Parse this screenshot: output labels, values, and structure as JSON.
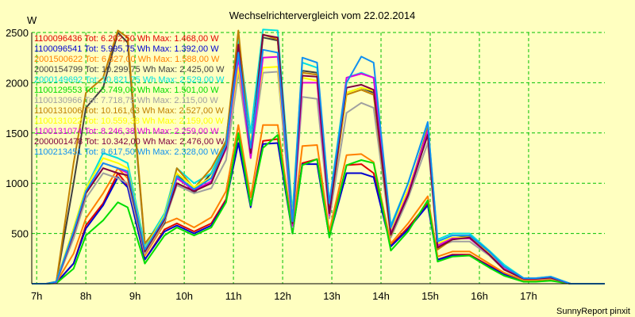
{
  "chart_data": {
    "type": "line",
    "title": "Wechselrichtervergleich vom 22.02.2014",
    "ylabel": "W",
    "footer": "SunnyReport pinxit",
    "ylim": [
      0,
      2500
    ],
    "xlim": [
      6.9,
      18.55
    ],
    "grid": true,
    "legend_position": "top-left",
    "xticks": [
      {
        "v": 7,
        "label": "7h"
      },
      {
        "v": 8,
        "label": "8h"
      },
      {
        "v": 9,
        "label": "9h"
      },
      {
        "v": 10,
        "label": "10h"
      },
      {
        "v": 11,
        "label": "11h"
      },
      {
        "v": 12,
        "label": "12h"
      },
      {
        "v": 13,
        "label": "13h"
      },
      {
        "v": 14,
        "label": "14h"
      },
      {
        "v": 15,
        "label": "15h"
      },
      {
        "v": 16,
        "label": "16h"
      },
      {
        "v": 17,
        "label": "17h"
      }
    ],
    "yticks": [
      {
        "v": 500,
        "label": "500"
      },
      {
        "v": 1000,
        "label": "1000"
      },
      {
        "v": 1500,
        "label": "1500"
      },
      {
        "v": 2000,
        "label": "2000"
      },
      {
        "v": 2500,
        "label": "2500"
      }
    ],
    "x": [
      6.9,
      7.2,
      7.4,
      7.75,
      8.0,
      8.35,
      8.65,
      8.85,
      9.2,
      9.6,
      9.85,
      10.2,
      10.55,
      10.85,
      11.1,
      11.35,
      11.6,
      11.9,
      12.2,
      12.4,
      12.7,
      12.95,
      13.3,
      13.6,
      13.85,
      14.2,
      14.55,
      14.95,
      15.15,
      15.45,
      15.8,
      16.2,
      16.5,
      16.9,
      17.15,
      17.45,
      17.85,
      18.55
    ],
    "series": [
      {
        "name": "1100096436 Tot: 6.202,50 Wh Max: 1.468,00 W",
        "color": "#e00000",
        "values": [
          0,
          0,
          10,
          200,
          580,
          800,
          1100,
          980,
          240,
          540,
          600,
          520,
          600,
          840,
          1480,
          780,
          1420,
          1440,
          520,
          1200,
          1240,
          480,
          1180,
          1190,
          1100,
          380,
          560,
          800,
          240,
          290,
          290,
          180,
          100,
          30,
          30,
          40,
          0,
          0
        ]
      },
      {
        "name": "1100096541 Tot: 5.995,75 Wh Max: 1.392,00 W",
        "color": "#0000d0",
        "values": [
          0,
          0,
          10,
          200,
          550,
          780,
          1060,
          960,
          240,
          520,
          580,
          500,
          580,
          820,
          1400,
          760,
          1390,
          1400,
          500,
          1190,
          1190,
          470,
          1100,
          1100,
          1060,
          370,
          540,
          780,
          240,
          280,
          280,
          170,
          95,
          30,
          30,
          40,
          0,
          0
        ]
      },
      {
        "name": "2001500622 Tot: 6.827,00 Wh Max: 1.588,00 W",
        "color": "#ff8000",
        "values": [
          0,
          0,
          15,
          300,
          650,
          900,
          1150,
          1050,
          280,
          600,
          650,
          560,
          660,
          920,
          1580,
          860,
          1580,
          1580,
          540,
          1370,
          1380,
          520,
          1280,
          1290,
          1210,
          400,
          600,
          870,
          270,
          320,
          320,
          200,
          110,
          35,
          35,
          45,
          0,
          0
        ]
      },
      {
        "name": "2000154799 Tot: 10.299,75 Wh Max: 2.425,00 W",
        "color": "#404040",
        "values": [
          0,
          0,
          20,
          1000,
          1750,
          1950,
          2500,
          2400,
          380,
          600,
          1100,
          900,
          1100,
          1400,
          2400,
          1350,
          2450,
          2420,
          650,
          2120,
          2100,
          720,
          1900,
          1950,
          1900,
          500,
          900,
          1550,
          350,
          450,
          480,
          300,
          150,
          50,
          50,
          60,
          0,
          0
        ]
      },
      {
        "name": "2000149692 Tot: 10.821,75 Wh Max: 2.529,00 W",
        "color": "#00e0e0",
        "values": [
          0,
          0,
          20,
          550,
          950,
          1300,
          1250,
          1200,
          380,
          700,
          1150,
          1000,
          1100,
          1430,
          2450,
          1500,
          2530,
          2520,
          700,
          2200,
          2150,
          800,
          2050,
          2100,
          2050,
          580,
          1000,
          1600,
          440,
          500,
          500,
          330,
          190,
          55,
          55,
          70,
          0,
          0
        ]
      },
      {
        "name": "1100129553 Tot: 5.749,00 Wh Max: 1.501,00 W",
        "color": "#00dd00",
        "values": [
          0,
          0,
          5,
          150,
          480,
          630,
          810,
          760,
          200,
          480,
          560,
          480,
          560,
          810,
          1500,
          780,
          1350,
          1480,
          500,
          1180,
          1240,
          460,
          1180,
          1230,
          1200,
          330,
          520,
          830,
          220,
          270,
          280,
          160,
          80,
          20,
          20,
          30,
          0,
          0
        ]
      },
      {
        "name": "1100130966 Tot: 7.718,75 Wh Max: 2.115,00 W",
        "color": "#a0a0a0",
        "values": [
          0,
          0,
          15,
          450,
          850,
          1100,
          1050,
          1000,
          300,
          620,
          980,
          900,
          950,
          1230,
          2100,
          1250,
          2100,
          2110,
          560,
          1860,
          1840,
          650,
          1700,
          1800,
          1750,
          460,
          850,
          1400,
          370,
          420,
          420,
          280,
          140,
          45,
          45,
          55,
          0,
          0
        ]
      },
      {
        "name": "1100131006 Tot: 10.161,63 Wh Max: 2.527,00 W",
        "color": "#c08000",
        "values": [
          0,
          0,
          20,
          1200,
          1900,
          2050,
          2520,
          2450,
          400,
          650,
          1150,
          950,
          1150,
          1420,
          2520,
          1300,
          2480,
          2430,
          620,
          2100,
          2080,
          700,
          1880,
          1930,
          1880,
          480,
          900,
          1550,
          340,
          440,
          470,
          290,
          140,
          50,
          50,
          60,
          0,
          0
        ]
      },
      {
        "name": "1100131022 Tot: 10.559,38 Wh Max: 2.159,00 W",
        "color": "#ffff00",
        "values": [
          0,
          0,
          20,
          550,
          950,
          1250,
          1200,
          1150,
          350,
          680,
          1100,
          960,
          1060,
          1380,
          2150,
          1400,
          2150,
          2159,
          660,
          2050,
          2020,
          750,
          1900,
          1950,
          1920,
          540,
          940,
          1500,
          400,
          460,
          460,
          300,
          160,
          50,
          50,
          60,
          0,
          0
        ]
      },
      {
        "name": "1100131074 Tot: 8.246,38 Wh Max: 2.259,00 W",
        "color": "#e000e0",
        "values": [
          0,
          0,
          15,
          500,
          900,
          1200,
          1150,
          1100,
          330,
          650,
          1050,
          930,
          1020,
          1340,
          2250,
          1250,
          2250,
          2259,
          580,
          2000,
          2000,
          680,
          2050,
          2090,
          2050,
          500,
          900,
          1520,
          380,
          450,
          450,
          290,
          150,
          50,
          50,
          60,
          0,
          0
        ]
      },
      {
        "name": "2000001478 Tot: 10.342,00 Wh Max: 2.476,00 W",
        "color": "#800040",
        "values": [
          0,
          0,
          20,
          500,
          900,
          1150,
          1100,
          1080,
          320,
          640,
          1000,
          920,
          1000,
          1360,
          2380,
          1300,
          2476,
          2450,
          600,
          2070,
          2060,
          700,
          1950,
          1980,
          1930,
          490,
          880,
          1480,
          360,
          440,
          460,
          290,
          140,
          50,
          50,
          60,
          0,
          0
        ]
      },
      {
        "name": "1100213451 Tot: 8.617,50 Wh Max: 2.328,00 W",
        "color": "#1090f0",
        "values": [
          0,
          0,
          20,
          520,
          920,
          1200,
          1150,
          1120,
          340,
          660,
          1070,
          940,
          1050,
          1380,
          2300,
          1350,
          2328,
          2300,
          620,
          2250,
          2200,
          800,
          2000,
          2260,
          2200,
          560,
          1000,
          1610,
          420,
          480,
          480,
          320,
          170,
          55,
          55,
          70,
          0,
          0
        ]
      }
    ]
  }
}
